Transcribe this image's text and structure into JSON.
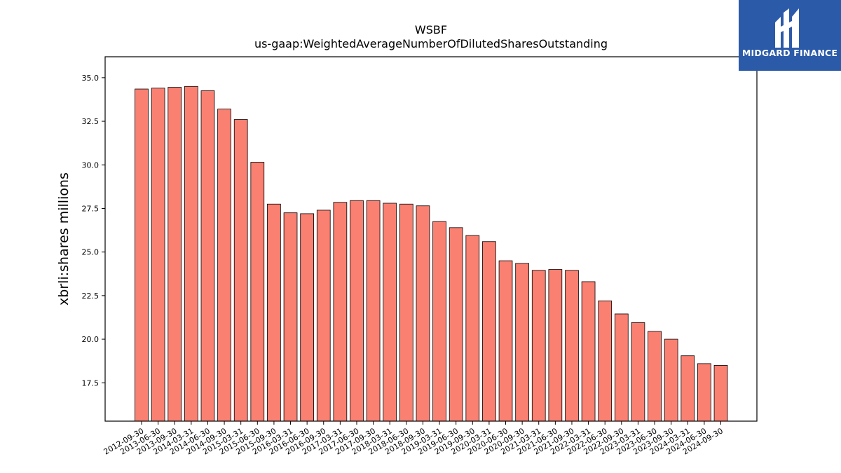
{
  "logo": {
    "text": "MIDGARD FINANCE",
    "background": "#2b5aa8"
  },
  "chart_data": {
    "type": "bar",
    "title": "WSBF",
    "subtitle": "us-gaap:WeightedAverageNumberOfDilutedSharesOutstanding",
    "ylabel": "xbrli:shares millions",
    "xlabel": "",
    "ylim": [
      15.3,
      36.2
    ],
    "yticks": [
      17.5,
      20.0,
      22.5,
      25.0,
      27.5,
      30.0,
      32.5,
      35.0
    ],
    "bar_color": "#fa8072",
    "bar_edge": "#000000",
    "grid": false,
    "categories": [
      "2012-09-30",
      "2013-06-30",
      "2013-09-30",
      "2014-03-31",
      "2014-06-30",
      "2014-09-30",
      "2015-03-31",
      "2015-06-30",
      "2015-09-30",
      "2016-03-31",
      "2016-06-30",
      "2016-09-30",
      "2017-03-31",
      "2017-06-30",
      "2017-09-30",
      "2018-03-31",
      "2018-06-30",
      "2018-09-30",
      "2019-03-31",
      "2019-06-30",
      "2019-09-30",
      "2020-03-31",
      "2020-06-30",
      "2020-09-30",
      "2021-03-31",
      "2021-06-30",
      "2021-09-30",
      "2022-03-31",
      "2022-06-30",
      "2022-09-30",
      "2023-03-31",
      "2023-06-30",
      "2023-09-30",
      "2024-03-31",
      "2024-06-30",
      "2024-09-30"
    ],
    "values": [
      34.35,
      34.4,
      34.45,
      34.5,
      34.25,
      33.2,
      32.6,
      30.15,
      27.75,
      27.25,
      27.2,
      27.4,
      27.85,
      27.95,
      27.95,
      27.8,
      27.75,
      27.65,
      26.75,
      26.4,
      25.95,
      25.6,
      24.5,
      24.35,
      23.95,
      24.0,
      23.95,
      23.3,
      22.2,
      21.45,
      20.95,
      20.45,
      20.0,
      19.05,
      18.6,
      18.5
    ]
  }
}
